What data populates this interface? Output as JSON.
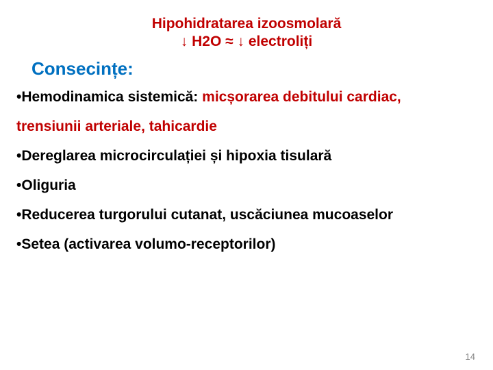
{
  "colors": {
    "title_red": "#c00000",
    "subheading_blue": "#0070c0",
    "body_text": "#000000",
    "page_num": "#808080",
    "background": "#ffffff"
  },
  "typography": {
    "title_fontsize_pt": 16,
    "subheading_fontsize_pt": 20,
    "body_fontsize_pt": 16,
    "pagenum_fontsize_pt": 10,
    "font_family": "Arial",
    "line_height_body": 2.05
  },
  "title": {
    "line1": "Hipohidratarea izoosmolară",
    "line2": "↓ H2O ≈ ↓ electroliți"
  },
  "subheading": "Consecințe:",
  "bullets": [
    {
      "prefix": "Hemodinamica sistemică: ",
      "red": "micșorarea debitului cardiac, trensiunii arteriale, tahicardie"
    },
    {
      "text": "Dereglarea microcirculației și hipoxia tisulară"
    },
    {
      "text": "Oliguria"
    },
    {
      "text": "Reducerea turgorului cutanat, uscăciunea mucoaselor"
    },
    {
      "text": "Setea (activarea volumo-receptorilor)"
    }
  ],
  "page_number": "14"
}
